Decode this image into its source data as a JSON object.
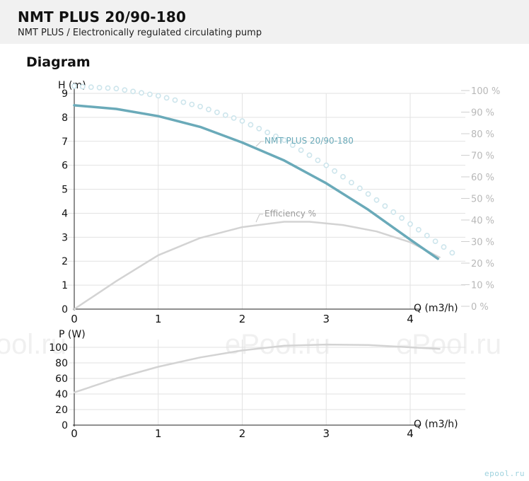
{
  "header": {
    "title": "NMT PLUS 20/90-180",
    "subtitle": "NMT PLUS / Electronically regulated circulating pump"
  },
  "section": {
    "title": "Diagram"
  },
  "watermarks": [
    "ePool.ru",
    "ePool.ru",
    "ePool.ru"
  ],
  "brand": "epool.ru",
  "colors": {
    "head_curve": "#6aaab9",
    "efficiency_curve": "#d3d3d3",
    "power_curve": "#d3d3d3",
    "max_dots": "#cde5ec",
    "axis_labels": "#111111",
    "percent_labels": "#b8b8b8",
    "grid": "#e2e2e2",
    "watermark": "#f0f0f0"
  },
  "chart_data": [
    {
      "type": "line",
      "xlabel": "Q (m3/h)",
      "ylabel": "H (m)",
      "y2_ticks": [
        "0 %",
        "10 %",
        "20 %",
        "30 %",
        "40 %",
        "50 %",
        "60 %",
        "70 %",
        "80 %",
        "90 %",
        "100 %"
      ],
      "xlim": [
        0,
        4.6
      ],
      "ylim": [
        0,
        9
      ],
      "y2lim": [
        0,
        100
      ],
      "x_ticks": [
        0,
        1,
        2,
        3,
        4
      ],
      "y_ticks": [
        0,
        1,
        2,
        3,
        4,
        5,
        6,
        7,
        8,
        9
      ],
      "grid": true,
      "series": [
        {
          "name": "NMT PLUS 20/90-180",
          "style": "solid-thick",
          "x": [
            0,
            0.5,
            1.0,
            1.5,
            2.0,
            2.5,
            3.0,
            3.5,
            4.0,
            4.33
          ],
          "y": [
            8.5,
            8.35,
            8.05,
            7.6,
            6.95,
            6.2,
            5.25,
            4.15,
            2.9,
            2.1
          ]
        },
        {
          "name": "Efficiency %",
          "axis": "right",
          "style": "solid",
          "x": [
            0,
            0.5,
            1.0,
            1.5,
            2.0,
            2.5,
            2.8,
            3.2,
            3.6,
            4.0,
            4.35
          ],
          "y": [
            0,
            13,
            25,
            33,
            38,
            40.5,
            40.5,
            39,
            36,
            31,
            24
          ]
        },
        {
          "name": "",
          "style": "dotted",
          "x": [
            0,
            0.5,
            1.0,
            1.5,
            2.0,
            2.5,
            3.0,
            3.5,
            4.0,
            4.5
          ],
          "y": [
            9.3,
            9.2,
            8.9,
            8.45,
            7.85,
            7.05,
            6.0,
            4.8,
            3.55,
            2.35
          ]
        }
      ]
    },
    {
      "type": "line",
      "xlabel": "Q (m3/h)",
      "ylabel": "P (W)",
      "xlim": [
        0,
        4.6
      ],
      "ylim": [
        0,
        110
      ],
      "x_ticks": [
        0,
        1,
        2,
        3,
        4
      ],
      "y_ticks": [
        0,
        20,
        40,
        60,
        80,
        100
      ],
      "grid": true,
      "series": [
        {
          "name": "",
          "style": "solid",
          "x": [
            0,
            0.5,
            1.0,
            1.5,
            2.0,
            2.5,
            3.0,
            3.5,
            4.0,
            4.35
          ],
          "y": [
            42,
            60,
            75,
            87,
            96,
            102,
            103.5,
            103,
            100,
            98
          ]
        }
      ]
    }
  ]
}
